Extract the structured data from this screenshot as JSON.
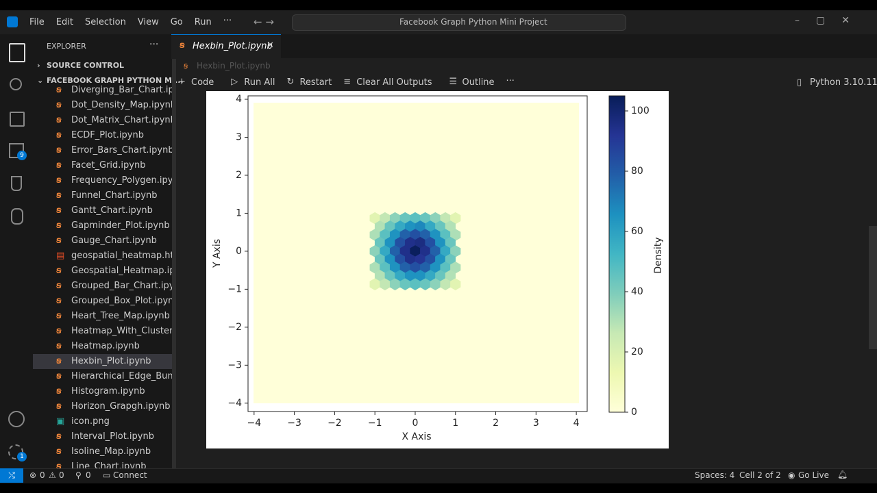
{
  "menu": [
    "File",
    "Edit",
    "Selection",
    "View",
    "Go",
    "Run"
  ],
  "search": "Facebook Graph Python Mini Project",
  "activity_badges": [
    9,
    1
  ],
  "explorer": {
    "title": "EXPLORER",
    "source_control": "SOURCE CONTROL",
    "folder": "FACEBOOK GRAPH PYTHON MI...",
    "files": [
      "Diverging_Bar_Chart.ip...",
      "Dot_Density_Map.ipynb",
      "Dot_Matrix_Chart.ipynb",
      "ECDF_Plot.ipynb",
      "Error_Bars_Chart.ipynb",
      "Facet_Grid.ipynb",
      "Frequency_Polygen.ipy...",
      "Funnel_Chart.ipynb",
      "Gantt_Chart.ipynb",
      "Gapminder_Plot.ipynb",
      "Gauge_Chart.ipynb",
      "geospatial_heatmap.html",
      "Geospatial_Heatmap.ip...",
      "Grouped_Bar_Chart.ipy...",
      "Grouped_Box_Plot.ipynb",
      "Heart_Tree_Map.ipynb",
      "Heatmap_With_Clusteri...",
      "Heatmap.ipynb",
      "Hexbin_Plot.ipynb",
      "Hierarchical_Edge_Bun...",
      "Histogram.ipynb",
      "Horizon_Grapgh.ipynb",
      "icon.png",
      "Interval_Plot.ipynb",
      "Isoline_Map.ipynb",
      "Line_Chart.ipynb"
    ]
  },
  "tab": "Hexbin_Plot.ipynb",
  "breadcrumb": "Hexbin_Plot.ipynb",
  "toolbar": [
    "Code",
    "Run All",
    "Restart",
    "Clear All Outputs",
    "Outline"
  ],
  "kernel": "Python 3.10.11",
  "status": {
    "errors": 0,
    "warnings": 0,
    "ports": 0,
    "connect": "Connect",
    "spaces": "Spaces: 4",
    "cell": "Cell 2 of 2",
    "go_live": "Go Live"
  },
  "chart_data": {
    "type": "hexbin",
    "xlabel": "X Axis",
    "ylabel": "Y Axis",
    "colorbar_label": "Density",
    "xlim": [
      -4.15,
      4.27
    ],
    "ylim": [
      -4.22,
      4.09
    ],
    "xticks": [
      {
        "value": -4,
        "label": "−4"
      },
      {
        "value": -3,
        "label": "−3"
      },
      {
        "value": -2,
        "label": "−2"
      },
      {
        "value": -1,
        "label": "−1"
      },
      0,
      1,
      2,
      3,
      4
    ],
    "yticks": [
      {
        "value": -4,
        "label": "−4"
      },
      {
        "value": -3,
        "label": "−3"
      },
      {
        "value": -2,
        "label": "−2"
      },
      {
        "value": -1,
        "label": "−1"
      },
      0,
      1,
      2,
      3,
      4
    ],
    "clim": [
      0,
      105
    ],
    "cticks": [
      0,
      20,
      40,
      60,
      80,
      100
    ],
    "colormap": [
      "#ffffd9",
      "#edf8b1",
      "#c7e9b4",
      "#7fcdbb",
      "#41b6c4",
      "#1d91c0",
      "#225ea8",
      "#253494",
      "#081d58"
    ],
    "x": [
      -1,
      -0.75,
      -0.5,
      -0.25,
      0,
      0.25,
      0.5,
      0.75,
      1,
      -0.875,
      -0.625,
      -0.375,
      -0.125,
      0.125,
      0.375,
      0.625,
      0.875,
      -1,
      -0.75,
      -0.5,
      -0.25,
      0,
      0.25,
      0.5,
      0.75,
      1,
      -0.875,
      -0.625,
      -0.375,
      -0.125,
      0.125,
      0.375,
      0.625,
      0.875,
      -1,
      -0.75,
      -0.5,
      -0.25,
      0,
      0.25,
      0.5,
      0.75,
      1,
      -0.875,
      -0.625,
      -0.375,
      -0.125,
      0.125,
      0.375,
      0.625,
      0.875,
      -1,
      -0.75,
      -0.5,
      -0.25,
      0,
      0.25,
      0.5,
      0.75,
      1,
      -0.875,
      -0.625,
      -0.375,
      -0.125,
      0.125,
      0.375,
      0.625,
      0.875,
      -1,
      -0.75,
      -0.5,
      -0.25,
      0,
      0.25,
      0.5,
      0.75,
      1
    ],
    "y": [
      0.87,
      0.87,
      0.87,
      0.87,
      0.87,
      0.87,
      0.87,
      0.87,
      0.87,
      0.65,
      0.65,
      0.65,
      0.65,
      0.65,
      0.65,
      0.65,
      0.65,
      0.43,
      0.43,
      0.43,
      0.43,
      0.43,
      0.43,
      0.43,
      0.43,
      0.43,
      0.22,
      0.22,
      0.22,
      0.22,
      0.22,
      0.22,
      0.22,
      0.22,
      0,
      0,
      0,
      0,
      0,
      0,
      0,
      0,
      0,
      -0.22,
      -0.22,
      -0.22,
      -0.22,
      -0.22,
      -0.22,
      -0.22,
      -0.22,
      -0.43,
      -0.43,
      -0.43,
      -0.43,
      -0.43,
      -0.43,
      -0.43,
      -0.43,
      -0.43,
      -0.65,
      -0.65,
      -0.65,
      -0.65,
      -0.65,
      -0.65,
      -0.65,
      -0.65,
      -0.87,
      -0.87,
      -0.87,
      -0.87,
      -0.87,
      -0.87,
      -0.87,
      -0.87,
      -0.87
    ],
    "values": [
      17,
      27,
      37,
      44,
      47,
      44,
      37,
      27,
      17,
      30,
      44,
      57,
      65,
      68,
      57,
      44,
      30,
      31,
      47,
      65,
      78,
      83,
      78,
      65,
      47,
      31,
      44,
      65,
      83,
      94,
      96,
      83,
      65,
      44,
      37,
      57,
      78,
      94,
      104,
      94,
      78,
      57,
      37,
      44,
      65,
      83,
      94,
      92,
      83,
      65,
      44,
      31,
      47,
      65,
      78,
      83,
      78,
      65,
      47,
      31,
      30,
      44,
      57,
      65,
      65,
      57,
      44,
      30,
      17,
      27,
      37,
      44,
      47,
      44,
      37,
      27,
      17
    ]
  }
}
